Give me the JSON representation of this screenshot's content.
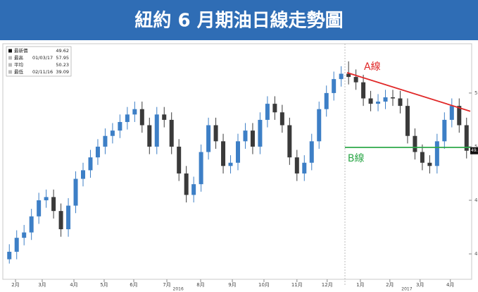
{
  "chart_data": {
    "type": "candlestick",
    "title": "紐約 6 月期油日線走勢圖",
    "x": [
      0,
      1,
      2,
      3,
      4,
      5,
      6,
      7,
      8,
      9,
      10,
      11,
      12,
      13,
      14,
      15,
      16,
      17,
      18,
      19,
      20,
      21,
      22,
      23,
      24,
      25,
      26,
      27,
      28,
      29,
      30,
      31,
      32,
      33,
      34,
      35,
      36,
      37,
      38,
      39,
      40,
      41,
      42,
      43,
      44,
      45,
      46,
      47,
      48,
      49,
      50,
      51,
      52,
      53,
      54,
      55,
      56,
      57,
      58,
      59,
      60,
      61,
      62
    ],
    "open": [
      39.5,
      40.2,
      41.5,
      42.0,
      43.5,
      45.0,
      45.3,
      44.0,
      42.3,
      44.5,
      47.0,
      47.8,
      49.0,
      50.0,
      51.0,
      51.5,
      52.3,
      53.0,
      53.5,
      52.0,
      50.0,
      53.0,
      52.5,
      50.0,
      47.5,
      45.5,
      46.5,
      49.5,
      52.0,
      50.5,
      48.2,
      48.5,
      50.5,
      51.5,
      50.0,
      52.5,
      54.0,
      53.2,
      52.0,
      49.0,
      47.5,
      48.5,
      50.5,
      53.5,
      55.0,
      56.3,
      56.8,
      56.5,
      56.0,
      54.5,
      54.0,
      54.2,
      54.6,
      54.5,
      53.8,
      51.0,
      49.5,
      48.5,
      48.2,
      50.5,
      52.5,
      53.8,
      52.0
    ],
    "high": [
      40.9,
      42.2,
      42.7,
      44.2,
      45.7,
      46.0,
      46.0,
      44.7,
      45.2,
      47.7,
      48.5,
      49.7,
      50.7,
      51.7,
      52.2,
      53.0,
      53.7,
      54.2,
      54.2,
      52.7,
      53.7,
      53.7,
      53.2,
      50.7,
      48.2,
      47.2,
      50.2,
      52.7,
      52.7,
      51.2,
      49.2,
      51.2,
      52.2,
      52.2,
      53.2,
      54.7,
      54.7,
      53.9,
      52.7,
      49.7,
      49.2,
      51.2,
      54.2,
      55.7,
      57.0,
      57.5,
      57.95,
      57.2,
      56.7,
      55.2,
      54.9,
      55.3,
      55.3,
      55.2,
      54.5,
      51.7,
      50.2,
      49.2,
      51.2,
      53.2,
      54.5,
      54.5,
      52.7
    ],
    "low": [
      39.1,
      39.5,
      40.8,
      41.3,
      42.8,
      44.3,
      43.3,
      41.6,
      41.6,
      43.8,
      46.3,
      47.1,
      48.3,
      49.3,
      50.3,
      50.8,
      51.6,
      52.3,
      51.3,
      49.3,
      49.3,
      51.8,
      49.3,
      46.8,
      44.8,
      44.8,
      45.8,
      48.8,
      49.8,
      47.5,
      47.5,
      47.8,
      49.8,
      49.3,
      49.3,
      51.8,
      52.5,
      51.3,
      48.3,
      46.8,
      46.8,
      47.8,
      49.8,
      52.8,
      54.3,
      55.6,
      55.8,
      55.3,
      53.8,
      53.3,
      53.3,
      53.5,
      53.8,
      53.1,
      50.3,
      48.8,
      47.8,
      47.5,
      47.5,
      49.8,
      51.8,
      51.3,
      48.9
    ],
    "close": [
      40.2,
      41.5,
      42.0,
      43.5,
      45.0,
      45.3,
      44.0,
      42.3,
      44.5,
      47.0,
      47.8,
      49.0,
      50.0,
      51.0,
      51.5,
      52.3,
      53.0,
      53.5,
      52.0,
      50.0,
      53.0,
      52.5,
      50.0,
      47.5,
      45.5,
      46.5,
      49.5,
      52.0,
      50.5,
      48.2,
      48.5,
      50.5,
      51.5,
      50.0,
      52.5,
      54.0,
      53.2,
      52.0,
      49.0,
      47.5,
      48.5,
      50.5,
      53.5,
      55.0,
      56.3,
      56.8,
      56.5,
      56.0,
      54.5,
      54.0,
      54.2,
      54.6,
      54.5,
      53.8,
      51.0,
      49.5,
      48.5,
      48.2,
      50.5,
      52.5,
      53.8,
      52.0,
      49.62
    ],
    "up_color": "#3d7fc6",
    "down_color": "#3a3a3a",
    "xlim": [
      -0.5,
      62.5
    ],
    "xticks": [
      {
        "value": 0.84,
        "label": "2月"
      },
      {
        "value": 4.46,
        "label": "3月"
      },
      {
        "value": 8.76,
        "label": "4月"
      },
      {
        "value": 12.86,
        "label": "5月"
      },
      {
        "value": 16.87,
        "label": "6月"
      },
      {
        "value": 21.36,
        "label": "7月"
      },
      {
        "value": 25.94,
        "label": "8月"
      },
      {
        "value": 30.24,
        "label": "9月"
      },
      {
        "value": 34.53,
        "label": "10月"
      },
      {
        "value": 39.0,
        "label": "11月"
      },
      {
        "value": 43.1,
        "label": "12月"
      },
      {
        "value": 47.6,
        "label": "1月"
      },
      {
        "value": 51.6,
        "label": "2月"
      },
      {
        "value": 55.7,
        "label": "3月"
      },
      {
        "value": 59.8,
        "label": "4月"
      }
    ],
    "year_labels": [
      {
        "value": 22.9,
        "label": "2016"
      },
      {
        "value": 53.9,
        "label": "2017"
      }
    ],
    "ylim": [
      37.5,
      59.4
    ],
    "yticks": [
      40,
      45,
      50,
      55
    ],
    "stats": [
      {
        "label": "最新價",
        "value": 49.62
      },
      {
        "label": "最高",
        "date": "01/03/17",
        "value": 57.95
      },
      {
        "label": "平均",
        "value": 50.23
      },
      {
        "label": "最低",
        "date": "02/11/16",
        "value": 39.09
      }
    ],
    "annotations": [
      {
        "text": "A線",
        "color": "#e02828",
        "x": [
          45.8,
          62.5
        ],
        "y": [
          56.9,
          53.3
        ]
      },
      {
        "text": "B線",
        "color": "#2ea84a",
        "x": [
          45.5,
          62.5
        ],
        "y": [
          49.93,
          49.93
        ]
      }
    ]
  }
}
